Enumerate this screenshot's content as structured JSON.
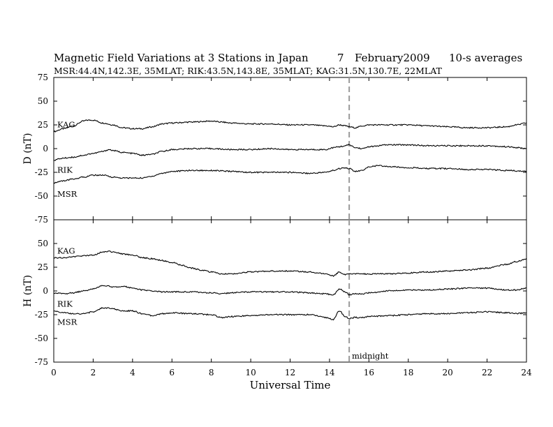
{
  "colors": {
    "trace": "#000000",
    "midnight_line": "#999999",
    "axes": "#000000"
  },
  "header": {
    "title": "Magnetic Field Variations at 3 Stations in Japan",
    "day": "7",
    "month_year": "February2009",
    "averaging": "10-s averages",
    "stations_line": "MSR:44.4N,142.3E, 35MLAT;  RIK:43.5N,143.8E, 35MLAT;  KAG:31.5N,130.7E, 22MLAT"
  },
  "annotations": {
    "midnight": "midnight"
  },
  "chart_data": [
    {
      "type": "line",
      "panel": "D",
      "ylabel": "D (nT)",
      "xlabel": "",
      "xlim": [
        0,
        24
      ],
      "ylim": [
        -75,
        75
      ],
      "yticks": [
        "75",
        "50",
        "25",
        "0",
        "-25",
        "-50",
        "-75"
      ],
      "xticks": [
        "0",
        "2",
        "4",
        "6",
        "8",
        "10",
        "12",
        "14",
        "16",
        "18",
        "20",
        "22",
        "24"
      ],
      "vline_x": 15,
      "series": [
        {
          "name": "KAG",
          "x": [
            0,
            0.5,
            1.0,
            1.5,
            1.7,
            2.0,
            2.5,
            3.0,
            3.5,
            4.0,
            4.5,
            5.0,
            5.5,
            6.0,
            7.0,
            8.0,
            8.5,
            9.0,
            10.0,
            11.0,
            12.0,
            13.0,
            13.8,
            14.2,
            14.5,
            14.8,
            15.0,
            15.3,
            15.7,
            16.0,
            17.0,
            18.0,
            19.0,
            20.0,
            21.0,
            22.0,
            23.0,
            23.5,
            24.0
          ],
          "y": [
            18,
            21,
            24,
            29,
            30,
            30,
            27,
            25,
            22,
            21,
            21,
            23,
            26,
            27,
            28,
            29,
            28,
            27,
            26,
            26,
            25,
            25,
            24,
            23,
            25,
            24,
            23,
            22,
            24,
            25,
            25,
            25,
            24,
            23,
            22,
            22,
            23,
            25,
            27
          ]
        },
        {
          "name": "RIK",
          "x": [
            0,
            0.5,
            1.0,
            1.5,
            2.0,
            2.5,
            2.8,
            3.0,
            3.5,
            4.0,
            4.5,
            5.0,
            5.5,
            6.0,
            7.0,
            8.0,
            9.0,
            10.0,
            11.0,
            12.0,
            13.0,
            13.8,
            14.2,
            14.5,
            14.8,
            15.0,
            15.3,
            15.7,
            16.0,
            17.0,
            18.0,
            19.0,
            20.0,
            21.0,
            22.0,
            23.0,
            23.5,
            24.0
          ],
          "y": [
            -12,
            -10,
            -9,
            -7,
            -5,
            -3,
            -1,
            -2,
            -4,
            -5,
            -7,
            -6,
            -3,
            -1,
            0,
            0,
            -1,
            -1,
            0,
            -1,
            -1,
            -1,
            1,
            2,
            3,
            4,
            1,
            0,
            2,
            4,
            4,
            3,
            3,
            3,
            3,
            2,
            1,
            0
          ]
        },
        {
          "name": "MSR",
          "x": [
            0,
            0.5,
            1.0,
            1.5,
            2.0,
            2.5,
            3.0,
            3.5,
            4.0,
            4.5,
            5.0,
            5.5,
            6.0,
            7.0,
            8.0,
            9.0,
            10.0,
            11.0,
            12.0,
            13.0,
            13.8,
            14.2,
            14.5,
            14.8,
            15.0,
            15.3,
            15.7,
            16.0,
            16.5,
            17.0,
            18.0,
            19.0,
            20.0,
            21.0,
            22.0,
            23.0,
            24.0
          ],
          "y": [
            -36,
            -34,
            -32,
            -30,
            -28,
            -28,
            -30,
            -31,
            -31,
            -31,
            -29,
            -26,
            -24,
            -23,
            -23,
            -24,
            -25,
            -25,
            -25,
            -26,
            -25,
            -23,
            -21,
            -20,
            -21,
            -24,
            -23,
            -19,
            -18,
            -19,
            -20,
            -21,
            -21,
            -22,
            -22,
            -23,
            -24
          ]
        }
      ]
    },
    {
      "type": "line",
      "panel": "H",
      "ylabel": "H (nT)",
      "xlabel": "Universal Time",
      "xlim": [
        0,
        24
      ],
      "ylim": [
        -75,
        75
      ],
      "yticks": [
        "75",
        "50",
        "25",
        "0",
        "-25",
        "-50",
        "-75"
      ],
      "xticks": [
        "0",
        "2",
        "4",
        "6",
        "8",
        "10",
        "12",
        "14",
        "16",
        "18",
        "20",
        "22",
        "24"
      ],
      "vline_x": 15,
      "series": [
        {
          "name": "KAG",
          "x": [
            0,
            0.5,
            1.0,
            1.5,
            2.0,
            2.5,
            2.8,
            3.0,
            3.5,
            4.0,
            4.5,
            5.0,
            5.5,
            6.0,
            6.5,
            7.0,
            7.5,
            8.0,
            8.5,
            9.0,
            10.0,
            11.0,
            12.0,
            13.0,
            13.8,
            14.2,
            14.5,
            14.8,
            15.0,
            15.5,
            16.0,
            17.0,
            18.0,
            19.0,
            20.0,
            21.0,
            22.0,
            23.0,
            23.5,
            24.0
          ],
          "y": [
            35,
            35,
            36,
            37,
            38,
            41,
            42,
            41,
            39,
            38,
            35,
            34,
            32,
            30,
            27,
            24,
            22,
            20,
            18,
            18,
            20,
            21,
            21,
            20,
            18,
            16,
            20,
            17,
            18,
            18,
            18,
            18,
            19,
            20,
            21,
            22,
            24,
            28,
            31,
            34
          ]
        },
        {
          "name": "RIK",
          "x": [
            0,
            0.5,
            1.0,
            1.5,
            2.0,
            2.5,
            2.8,
            3.0,
            3.5,
            4.0,
            4.5,
            5.0,
            5.5,
            6.0,
            7.0,
            8.0,
            8.5,
            9.0,
            10.0,
            11.0,
            12.0,
            13.0,
            13.8,
            14.2,
            14.5,
            14.8,
            15.0,
            15.3,
            15.7,
            16.0,
            17.0,
            18.0,
            19.0,
            20.0,
            21.0,
            22.0,
            23.0,
            23.5,
            24.0
          ],
          "y": [
            -2,
            -3,
            -2,
            0,
            2,
            6,
            5,
            4,
            5,
            3,
            1,
            0,
            -1,
            -1,
            -1,
            -2,
            -3,
            -2,
            -1,
            -1,
            -1,
            -2,
            -3,
            -4,
            2,
            -1,
            -4,
            -3,
            -3,
            -2,
            0,
            1,
            1,
            2,
            3,
            3,
            1,
            1,
            3
          ]
        },
        {
          "name": "MSR",
          "x": [
            0,
            0.5,
            1.0,
            1.5,
            2.0,
            2.5,
            2.8,
            3.0,
            3.5,
            4.0,
            4.5,
            5.0,
            5.5,
            6.0,
            7.0,
            8.0,
            8.5,
            9.0,
            10.0,
            11.0,
            12.0,
            13.0,
            13.8,
            14.2,
            14.5,
            14.8,
            15.0,
            15.3,
            15.7,
            16.0,
            17.0,
            18.0,
            19.0,
            20.0,
            21.0,
            22.0,
            23.0,
            23.5,
            24.0
          ],
          "y": [
            -21,
            -23,
            -24,
            -24,
            -22,
            -18,
            -18,
            -19,
            -21,
            -21,
            -24,
            -26,
            -24,
            -23,
            -24,
            -25,
            -28,
            -27,
            -26,
            -25,
            -25,
            -25,
            -28,
            -30,
            -21,
            -27,
            -29,
            -28,
            -28,
            -27,
            -26,
            -25,
            -24,
            -24,
            -23,
            -22,
            -23,
            -24,
            -23
          ]
        }
      ]
    }
  ]
}
